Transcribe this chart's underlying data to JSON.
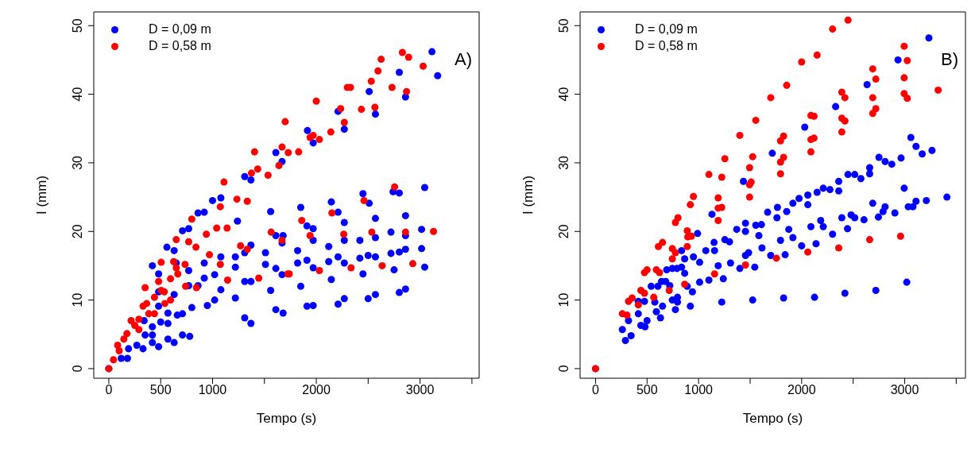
{
  "chart_data": [
    {
      "type": "scatter",
      "xlabel": "Tempo (s)",
      "ylabel": "I (mm)",
      "annotations": [
        "A)"
      ],
      "legend": "top left",
      "marker": "circle",
      "xlim": [
        -145,
        3570
      ],
      "ylim": [
        -1.4,
        52
      ],
      "xticks": [
        0,
        500,
        1000,
        {
          "value": 1500,
          "label": null
        },
        2000,
        {
          "value": 2500,
          "label": null
        },
        3000,
        {
          "value": 3500,
          "label": null
        }
      ],
      "yticks": [
        0,
        10,
        20,
        30,
        40,
        50
      ],
      "series": [
        {
          "name": "D = 0,09 m",
          "color": "#0000ff",
          "x": [
            0,
            1000,
            1080,
            860,
            920,
            710,
            770,
            560,
            630,
            420,
            480,
            480,
            630,
            650,
            770,
            770,
            860,
            920,
            920,
            1020,
            1080,
            1220,
            1220,
            1080,
            1020,
            950,
            800,
            710,
            660,
            570,
            570,
            500,
            480,
            710,
            780,
            570,
            630,
            420,
            480,
            330,
            270,
            190,
            120,
            180,
            340,
            420,
            350,
            420,
            1240,
            1220,
            1310,
            1370,
            1310,
            1370,
            1310,
            1370,
            1370,
            1310,
            1610,
            1670,
            1560,
            1610,
            1680,
            1670,
            1510,
            1510,
            1610,
            1670,
            1560,
            1610,
            1680,
            3115,
            3170,
            2800,
            2860,
            2510,
            2570,
            2210,
            2270,
            1915,
            1970,
            3045,
            2740,
            2800,
            2450,
            2510,
            2145,
            2210,
            1850,
            2270,
            2570,
            2860,
            1910,
            1970,
            1970,
            2270,
            2420,
            2570,
            2720,
            2860,
            3015,
            1820,
            2120,
            1820,
            1910,
            1970,
            2120,
            2210,
            2270,
            2420,
            2500,
            2570,
            2720,
            2800,
            2860,
            3015,
            3045,
            2750,
            2450,
            2145,
            1850,
            1910,
            1970,
            2210,
            2270,
            2500,
            2570,
            2800,
            2860
          ],
          "values": [
            0,
            24.5,
            24.9,
            22.7,
            22.8,
            20.1,
            20.4,
            17.7,
            17.2,
            15.0,
            13.8,
            11.2,
            10.8,
            15.4,
            14.3,
            12.1,
            12.1,
            15.4,
            13.2,
            13.7,
            16.3,
            16.3,
            14.8,
            11.5,
            10.0,
            9.2,
            8.9,
            8.0,
            7.8,
            8.1,
            6.6,
            6.8,
            9.1,
            4.9,
            4.7,
            4.3,
            3.8,
            3.8,
            3.2,
            2.9,
            3.4,
            2.9,
            1.5,
            1.5,
            7.0,
            6.1,
            4.9,
            4.9,
            21.5,
            10.3,
            7.4,
            6.6,
            12.7,
            12.7,
            16.9,
            18.0,
            27.5,
            28.0,
            31.5,
            30.2,
            22.9,
            19.4,
            19.4,
            18.3,
            16.9,
            15.2,
            14.6,
            13.7,
            11.4,
            8.6,
            8.1,
            46.2,
            42.7,
            43.2,
            39.6,
            40.4,
            37.1,
            37.5,
            34.9,
            34.7,
            32.9,
            26.4,
            25.8,
            25.6,
            25.5,
            24.1,
            24.3,
            22.8,
            23.5,
            21.3,
            21.9,
            22.3,
            20.8,
            20.4,
            18.7,
            18.7,
            18.7,
            19.1,
            19.9,
            19.4,
            20.3,
            17.2,
            17.8,
            15.4,
            15.8,
            14.7,
            15.6,
            16.3,
            15.4,
            16.1,
            16.5,
            16.3,
            16.8,
            17.0,
            17.4,
            17.5,
            14.8,
            14.4,
            13.8,
            13.0,
            12.0,
            9.1,
            9.2,
            9.4,
            10.2,
            10.2,
            10.8,
            11.1,
            11.6
          ]
        },
        {
          "name": "D = 0,58 m",
          "color": "#ff0000",
          "x": [
            0,
            45,
            85,
            100,
            145,
            175,
            215,
            250,
            290,
            290,
            330,
            365,
            385,
            440,
            440,
            350,
            505,
            535,
            595,
            540,
            480,
            595,
            665,
            650,
            625,
            505,
            735,
            740,
            845,
            650,
            770,
            840,
            800,
            940,
            970,
            1075,
            1145,
            1040,
            1140,
            1075,
            1110,
            1235,
            1335,
            1270,
            1335,
            1445,
            1375,
            1435,
            1535,
            1405,
            1640,
            1670,
            1700,
            1565,
            1670,
            1725,
            1730,
            1830,
            2000,
            1940,
            1970,
            2030,
            2140,
            2235,
            2270,
            2300,
            2330,
            2435,
            2565,
            2530,
            2595,
            2625,
            2730,
            2870,
            2830,
            2890,
            3030,
            2755,
            2460,
            2150,
            1860,
            1940,
            2265,
            2535,
            2860,
            3130,
            1740,
            2030,
            2335,
            2635,
            2930
          ],
          "values": [
            0,
            1.3,
            3.4,
            2.6,
            4.3,
            5.1,
            7.0,
            6.3,
            7.2,
            5.7,
            9.1,
            9.5,
            8.0,
            8.0,
            10.4,
            11.8,
            11.4,
            11.2,
            10.0,
            9.5,
            12.7,
            13.1,
            13.8,
            14.7,
            15.6,
            15.5,
            15.2,
            12.0,
            11.8,
            18.8,
            18.5,
            17.7,
            21.8,
            19.6,
            16.6,
            15.2,
            12.9,
            20.5,
            20.5,
            23.6,
            27.2,
            24.7,
            24.4,
            17.9,
            17.4,
            13.2,
            28.5,
            29.1,
            28.2,
            31.6,
            29.6,
            32.3,
            36.0,
            19.9,
            18.7,
            13.8,
            31.5,
            31.6,
            39.0,
            33.7,
            34.0,
            33.4,
            34.5,
            37.9,
            35.9,
            41.0,
            41.0,
            37.8,
            38.1,
            41.9,
            43.4,
            45.1,
            41.0,
            40.4,
            46.1,
            45.4,
            44.1,
            26.5,
            24.5,
            22.7,
            21.6,
            19.4,
            19.6,
            19.9,
            19.9,
            20.0,
            13.8,
            14.3,
            14.7,
            15.0,
            15.3
          ]
        }
      ]
    },
    {
      "type": "scatter",
      "xlabel": "Tempo (s)",
      "ylabel": "I (mm)",
      "annotations": [
        "B)"
      ],
      "legend": "top left",
      "marker": "circle",
      "xlim": [
        -150,
        3590
      ],
      "ylim": [
        -1.4,
        52
      ],
      "xticks": [
        0,
        500,
        1000,
        {
          "value": 1500,
          "label": null
        },
        2000,
        {
          "value": 2500,
          "label": null
        },
        3000,
        {
          "value": 3500,
          "label": null
        }
      ],
      "yticks": [
        0,
        10,
        20,
        30,
        40,
        50
      ],
      "series": [
        {
          "name": "D = 0,09 m",
          "color": "#0000ff",
          "x": [
            0,
            260,
            290,
            345,
            320,
            415,
            415,
            440,
            480,
            500,
            475,
            540,
            575,
            590,
            630,
            650,
            605,
            640,
            680,
            690,
            745,
            720,
            745,
            795,
            775,
            795,
            790,
            835,
            865,
            835,
            865,
            890,
            940,
            920,
            950,
            1010,
            990,
            1010,
            1070,
            1100,
            1150,
            1155,
            1190,
            1130,
            1225,
            1240,
            1255,
            1300,
            1310,
            1370,
            1400,
            1455,
            1455,
            1485,
            1455,
            1545,
            1525,
            1435,
            1585,
            1615,
            1555,
            1610,
            1670,
            1700,
            1715,
            2030,
            2330,
            2635,
            2935,
            3235,
            1765,
            1760,
            1855,
            1915,
            1975,
            2060,
            2060,
            2150,
            2210,
            2275,
            2360,
            2360,
            2450,
            2515,
            2575,
            2660,
            2660,
            2750,
            2810,
            2875,
            2965,
            3060,
            3110,
            3170,
            3265,
            3410,
            3210,
            3110,
            3080,
            3035,
            2995,
            2905,
            2810,
            2790,
            2745,
            2690,
            2605,
            2515,
            2480,
            2445,
            2390,
            2300,
            2210,
            2185,
            2140,
            2090,
            2000,
            1915,
            1875,
            1795,
            1840,
            1825,
            2125,
            2420,
            2720,
            3020
          ],
          "values": [
            0,
            5.7,
            4.1,
            4.8,
            7.0,
            8.0,
            9.8,
            6.3,
            6.1,
            7.0,
            9.8,
            12.0,
            9.7,
            8.3,
            7.4,
            9.1,
            12.0,
            12.7,
            12.7,
            14.4,
            14.6,
            12.1,
            10.0,
            10.4,
            8.6,
            9.7,
            14.6,
            14.8,
            13.9,
            17.2,
            16.0,
            12.0,
            11.2,
            9.1,
            16.3,
            15.5,
            19.7,
            12.6,
            17.2,
            12.9,
            18.4,
            17.2,
            15.0,
            22.5,
            9.7,
            13.1,
            18.8,
            18.5,
            15.4,
            20.3,
            14.6,
            21.2,
            20.0,
            16.9,
            16.5,
            14.8,
            10.0,
            27.3,
            19.4,
            17.6,
            20.9,
            21.0,
            22.8,
            16.5,
            31.4,
            35.2,
            38.2,
            41.4,
            45.0,
            48.2,
            23.5,
            22.0,
            22.9,
            24.1,
            24.8,
            25.3,
            23.9,
            25.7,
            26.3,
            26.1,
            27.3,
            25.9,
            28.3,
            28.3,
            27.7,
            29.3,
            28.4,
            30.8,
            30.2,
            29.8,
            30.7,
            33.7,
            32.4,
            31.3,
            31.8,
            25.0,
            24.5,
            24.4,
            23.6,
            23.6,
            26.3,
            22.7,
            23.6,
            22.9,
            22.1,
            24.1,
            21.7,
            22.0,
            22.4,
            20.4,
            22.0,
            19.6,
            20.7,
            21.6,
            18.2,
            20.7,
            17.9,
            19.1,
            20.3,
            18.7,
            16.6,
            10.3,
            10.4,
            11.0,
            11.4,
            12.6
          ]
        },
        {
          "name": "D = 0,58 m",
          "color": "#ff0000",
          "x": [
            0,
            260,
            305,
            320,
            355,
            415,
            440,
            475,
            565,
            475,
            500,
            590,
            620,
            715,
            610,
            650,
            745,
            775,
            745,
            775,
            800,
            865,
            890,
            895,
            930,
            890,
            920,
            950,
            1100,
            1190,
            1225,
            1190,
            1190,
            1225,
            1255,
            1155,
            1400,
            1455,
            1495,
            1495,
            1510,
            1495,
            1525,
            1555,
            1700,
            2300,
            2450,
            2000,
            2150,
            1855,
            1795,
            1825,
            1795,
            1825,
            1795,
            2090,
            2120,
            2090,
            2120,
            2090,
            2390,
            2420,
            2390,
            2420,
            2390,
            2690,
            2720,
            2690,
            2720,
            2690,
            2995,
            3025,
            2995,
            2995,
            3025,
            3325,
            1755,
            2060,
            2360,
            2660,
            2960
          ],
          "values": [
            0,
            8.0,
            7.8,
            9.8,
            10.3,
            9.3,
            11.4,
            11.0,
            10.4,
            14.0,
            14.4,
            14.4,
            14.0,
            11.4,
            17.8,
            18.4,
            17.5,
            16.9,
            16.0,
            21.3,
            22.0,
            12.3,
            20.1,
            19.2,
            19.3,
            17.8,
            23.9,
            25.1,
            28.3,
            23.4,
            23.5,
            24.9,
            21.6,
            27.9,
            30.6,
            13.8,
            34.0,
            15.1,
            29.3,
            26.8,
            27.2,
            25.0,
            30.9,
            36.2,
            39.5,
            49.5,
            50.8,
            44.7,
            45.7,
            41.3,
            33.2,
            33.9,
            30.1,
            30.8,
            28.4,
            36.9,
            36.8,
            33.4,
            33.6,
            31.6,
            40.3,
            39.5,
            36.5,
            36.1,
            34.5,
            43.7,
            42.2,
            39.5,
            37.9,
            37.2,
            47.0,
            44.9,
            42.4,
            40.1,
            39.4,
            40.6,
            16.1,
            17.0,
            17.6,
            18.8,
            19.3
          ]
        }
      ]
    }
  ]
}
